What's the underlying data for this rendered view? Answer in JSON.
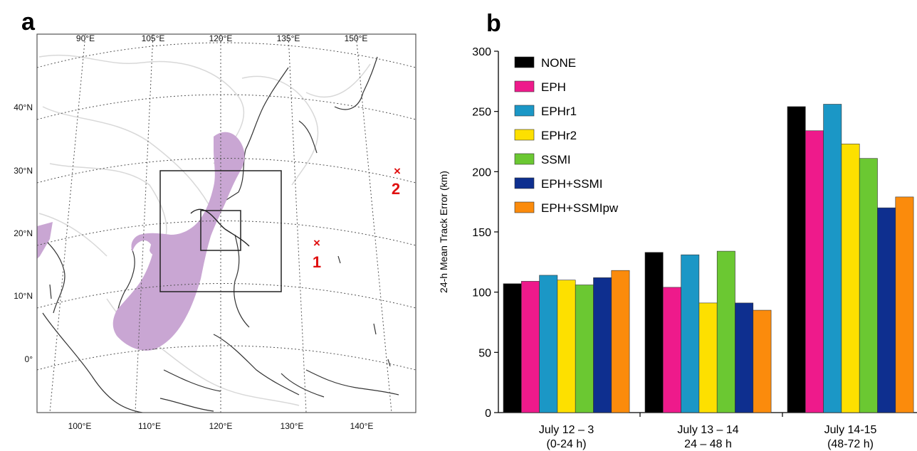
{
  "panels": {
    "a": {
      "label": "a",
      "top_lon_labels": [
        "90°E",
        "105°E",
        "120°E",
        "135°E",
        "150°E"
      ],
      "bottom_lon_labels": [
        "100°E",
        "110°E",
        "120°E",
        "130°E",
        "140°E"
      ],
      "lat_labels": [
        "40°N",
        "30°N",
        "20°N",
        "10°N",
        "0°"
      ],
      "markers": [
        {
          "symbol": "×",
          "label": "1",
          "lon": 135,
          "lat": 18
        },
        {
          "symbol": "×",
          "label": "2",
          "lon": 147,
          "lat": 29.5
        }
      ],
      "colors": {
        "shade": "#c9a6d3",
        "marker": "#e01010",
        "coast": "#333333"
      }
    },
    "b": {
      "label": "b"
    }
  },
  "chart_data": {
    "type": "bar",
    "title": "",
    "xlabel": "",
    "ylabel": "24-h Mean Track Error (km)",
    "ylim": [
      0,
      300
    ],
    "yticks": [
      0,
      50,
      100,
      150,
      200,
      250,
      300
    ],
    "grid": false,
    "legend_position": "top-left",
    "categories": [
      {
        "line1": "July 12 – 3",
        "line2": "(0-24 h)"
      },
      {
        "line1": "July 13 – 14",
        "line2": "24 – 48 h"
      },
      {
        "line1": "July 14-15",
        "line2": "(48-72 h)"
      }
    ],
    "series": [
      {
        "name": "NONE",
        "color": "#000000",
        "values": [
          107,
          133,
          254
        ]
      },
      {
        "name": "EPH",
        "color": "#ee1a8b",
        "values": [
          109,
          104,
          234
        ]
      },
      {
        "name": "EPHr1",
        "color": "#1b97c6",
        "values": [
          114,
          131,
          256
        ]
      },
      {
        "name": "EPHr2",
        "color": "#fde000",
        "values": [
          110,
          91,
          223
        ]
      },
      {
        "name": "SSMI",
        "color": "#6bc832",
        "values": [
          106,
          134,
          211
        ]
      },
      {
        "name": "EPH+SSMI",
        "color": "#0e2f8f",
        "values": [
          112,
          91,
          170
        ]
      },
      {
        "name": "EPH+SSMIpw",
        "color": "#fb8b0c",
        "values": [
          118,
          85,
          179
        ]
      }
    ]
  }
}
